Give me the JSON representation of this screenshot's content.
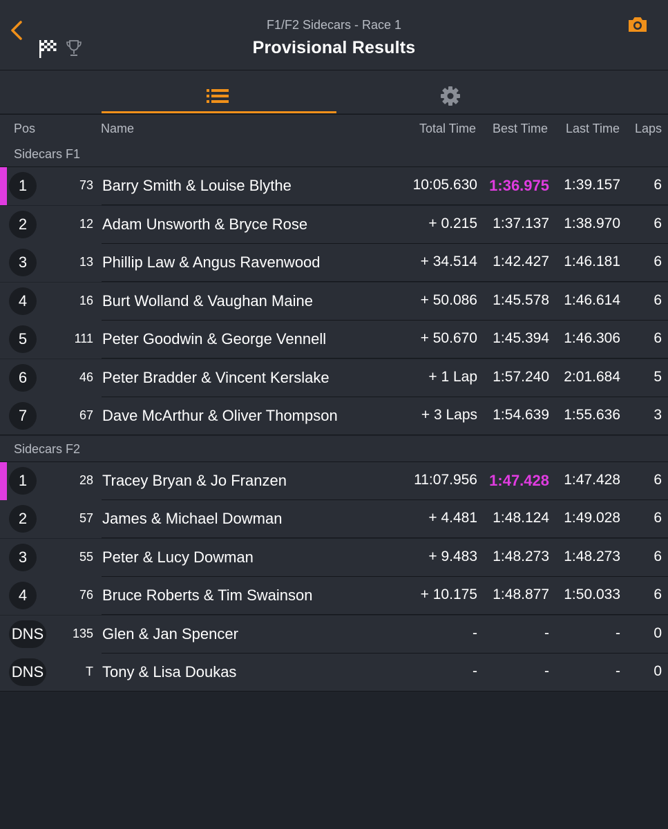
{
  "header": {
    "subtitle": "F1/F2 Sidecars - Race 1",
    "title": "Provisional Results"
  },
  "icons": {
    "back": "chevron-left-icon",
    "flag": "checkered-flag-icon",
    "trophy": "trophy-icon",
    "camera": "camera-icon",
    "list": "list-icon",
    "settings": "gear-icon"
  },
  "colors": {
    "accent": "#f0901a",
    "fastest": "#e03ce0",
    "background": "#1f232a",
    "row": "#2a2e36"
  },
  "columns": {
    "pos": "Pos",
    "name": "Name",
    "total": "Total Time",
    "best": "Best Time",
    "last": "Last Time",
    "laps": "Laps"
  },
  "sections": [
    {
      "label": "Sidecars F1",
      "rows": [
        {
          "pos": "1",
          "num": "73",
          "name": "Barry Smith & Louise Blythe",
          "total": "10:05.630",
          "best": "1:36.975",
          "last": "1:39.157",
          "laps": "6",
          "fastest": true
        },
        {
          "pos": "2",
          "num": "12",
          "name": "Adam Unsworth & Bryce Rose",
          "total": "+ 0.215",
          "best": "1:37.137",
          "last": "1:38.970",
          "laps": "6"
        },
        {
          "pos": "3",
          "num": "13",
          "name": "Phillip Law & Angus Ravenwood",
          "total": "+ 34.514",
          "best": "1:42.427",
          "last": "1:46.181",
          "laps": "6"
        },
        {
          "pos": "4",
          "num": "16",
          "name": "Burt Wolland & Vaughan Maine",
          "total": "+ 50.086",
          "best": "1:45.578",
          "last": "1:46.614",
          "laps": "6"
        },
        {
          "pos": "5",
          "num": "111",
          "name": "Peter Goodwin & George Vennell",
          "total": "+ 50.670",
          "best": "1:45.394",
          "last": "1:46.306",
          "laps": "6"
        },
        {
          "pos": "6",
          "num": "46",
          "name": "Peter Bradder & Vincent Kerslake",
          "total": "+ 1 Lap",
          "best": "1:57.240",
          "last": "2:01.684",
          "laps": "5"
        },
        {
          "pos": "7",
          "num": "67",
          "name": "Dave McArthur & Oliver Thompson",
          "total": "+ 3 Laps",
          "best": "1:54.639",
          "last": "1:55.636",
          "laps": "3"
        }
      ]
    },
    {
      "label": "Sidecars F2",
      "rows": [
        {
          "pos": "1",
          "num": "28",
          "name": "Tracey Bryan & Jo Franzen",
          "total": "11:07.956",
          "best": "1:47.428",
          "last": "1:47.428",
          "laps": "6",
          "fastest": true
        },
        {
          "pos": "2",
          "num": "57",
          "name": "James & Michael Dowman",
          "total": "+ 4.481",
          "best": "1:48.124",
          "last": "1:49.028",
          "laps": "6"
        },
        {
          "pos": "3",
          "num": "55",
          "name": "Peter & Lucy Dowman",
          "total": "+ 9.483",
          "best": "1:48.273",
          "last": "1:48.273",
          "laps": "6"
        },
        {
          "pos": "4",
          "num": "76",
          "name": "Bruce Roberts & Tim Swainson",
          "total": "+ 10.175",
          "best": "1:48.877",
          "last": "1:50.033",
          "laps": "6"
        },
        {
          "pos": "DNS",
          "num": "135",
          "name": "Glen & Jan Spencer",
          "total": "-",
          "best": "-",
          "last": "-",
          "laps": "0"
        },
        {
          "pos": "DNS",
          "num": "T",
          "name": "Tony & Lisa Doukas",
          "total": "-",
          "best": "-",
          "last": "-",
          "laps": "0"
        }
      ]
    }
  ]
}
